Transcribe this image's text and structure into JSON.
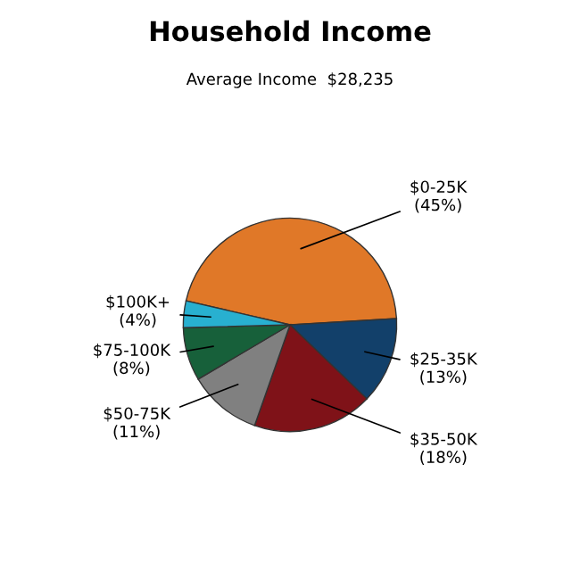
{
  "chart_data": {
    "type": "pie",
    "title": "Household Income",
    "subtitle": "Average Income  $28,235",
    "categories": [
      "$0-25K",
      "$25-35K",
      "$35-50K",
      "$50-75K",
      "$75-100K",
      "$100K+"
    ],
    "values": [
      45,
      13,
      18,
      11,
      8,
      4
    ],
    "value_labels": [
      "(45%)",
      "(13%)",
      "(18%)",
      "(11%)",
      "(8%)",
      "(4%)"
    ],
    "colors": [
      "#e07828",
      "#12406a",
      "#7f1218",
      "#808080",
      "#17603a",
      "#28b0d0"
    ]
  }
}
